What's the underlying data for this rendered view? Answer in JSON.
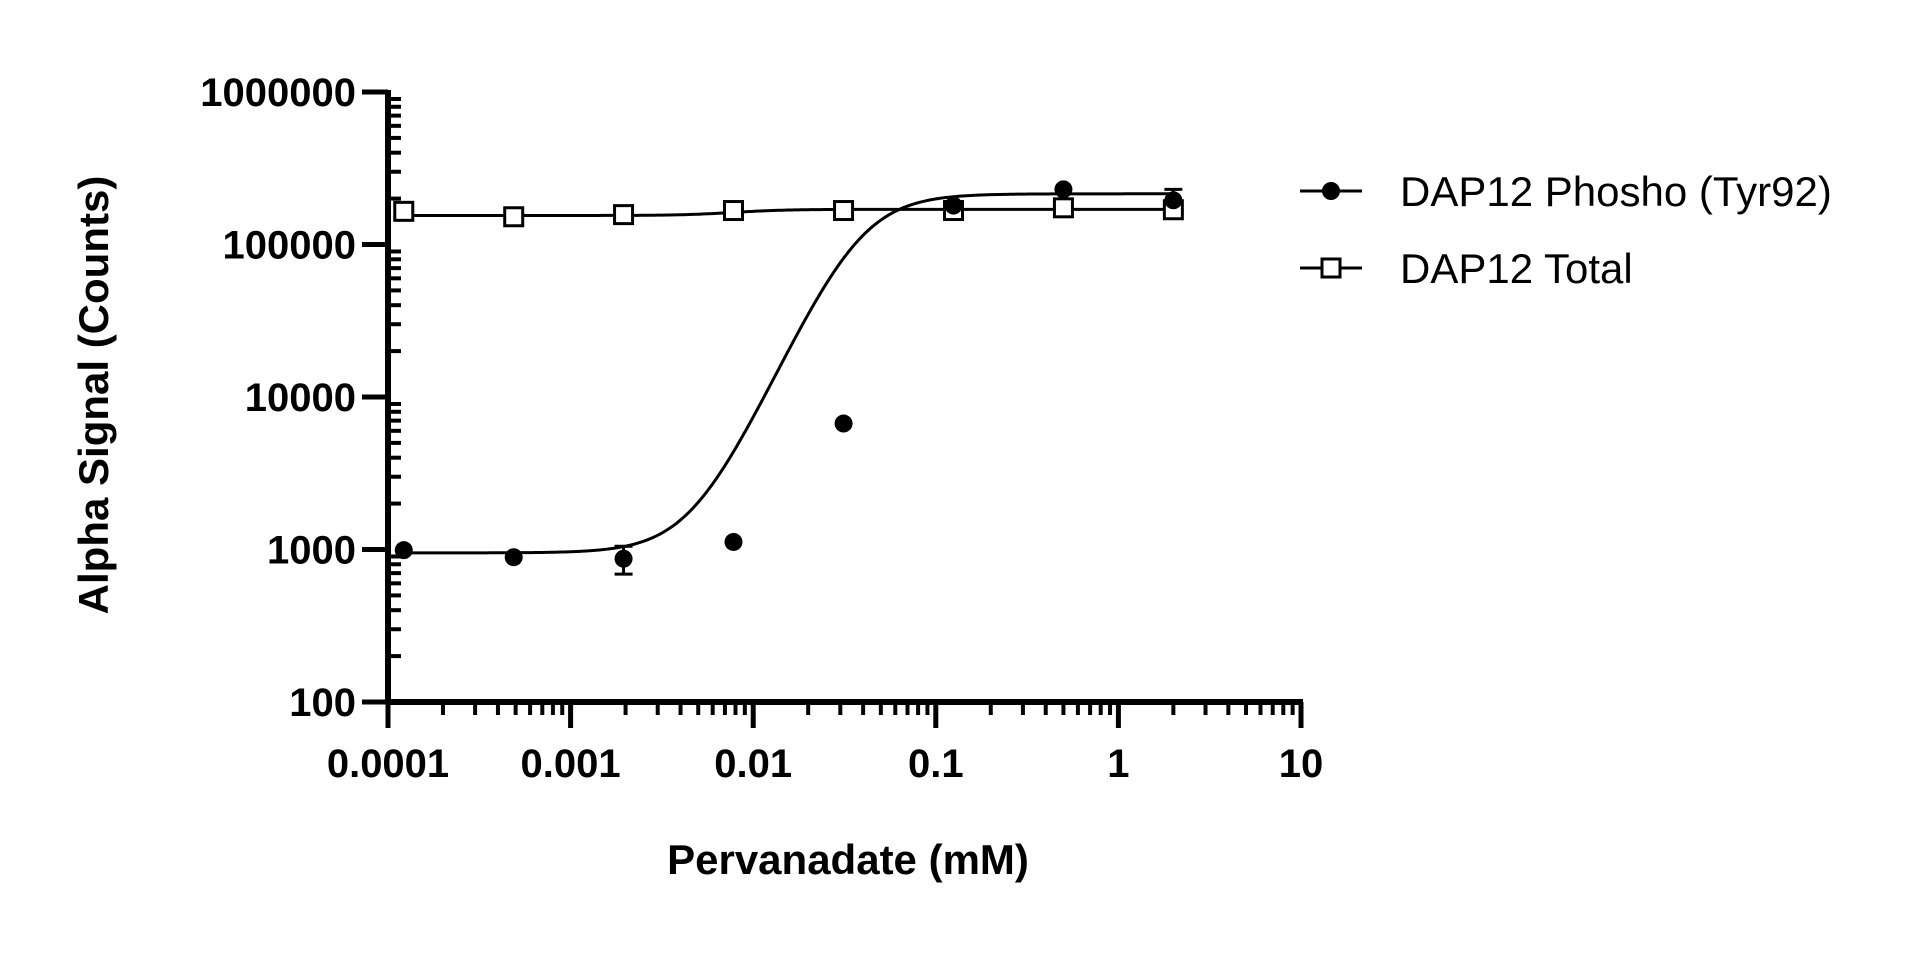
{
  "chart_data": {
    "type": "scatter",
    "title": "",
    "xlabel": "Pervanadate (mM)",
    "ylabel": "Alpha Signal (Counts)",
    "x_scale": "log",
    "y_scale": "log",
    "xlim": [
      0.0001,
      10
    ],
    "ylim": [
      100,
      1000000
    ],
    "x_ticks": [
      "0.0001",
      "0.001",
      "0.01",
      "0.1",
      "1",
      "10"
    ],
    "y_ticks": [
      "100",
      "1000",
      "10000",
      "100000",
      "1000000"
    ],
    "grid": false,
    "legend_position": "right",
    "series": [
      {
        "name": "DAP12 Phosho (Tyr92)",
        "marker": "filled-circle",
        "x": [
          0.000122,
          0.000488,
          0.00195,
          0.0078,
          0.03125,
          0.125,
          0.5,
          2
        ],
        "y": [
          990,
          890,
          870,
          1120,
          6700,
          180000,
          230000,
          195000
        ],
        "error": [
          0,
          0,
          180,
          0,
          0,
          0,
          0,
          35000
        ],
        "fit": {
          "bottom": 950,
          "top": 215000,
          "logEC50": -1.42,
          "hill": 2.6
        }
      },
      {
        "name": "DAP12 Total",
        "marker": "open-square",
        "x": [
          0.000122,
          0.000488,
          0.00195,
          0.0078,
          0.03125,
          0.125,
          0.5,
          2
        ],
        "y": [
          165000,
          152000,
          157000,
          167000,
          167000,
          167000,
          174000,
          169000
        ],
        "error": [
          0,
          0,
          0,
          0,
          0,
          0,
          0,
          0
        ],
        "fit": {
          "bottom": 155000,
          "top": 170000,
          "logEC50": -2.1,
          "hill": 3
        }
      }
    ]
  }
}
